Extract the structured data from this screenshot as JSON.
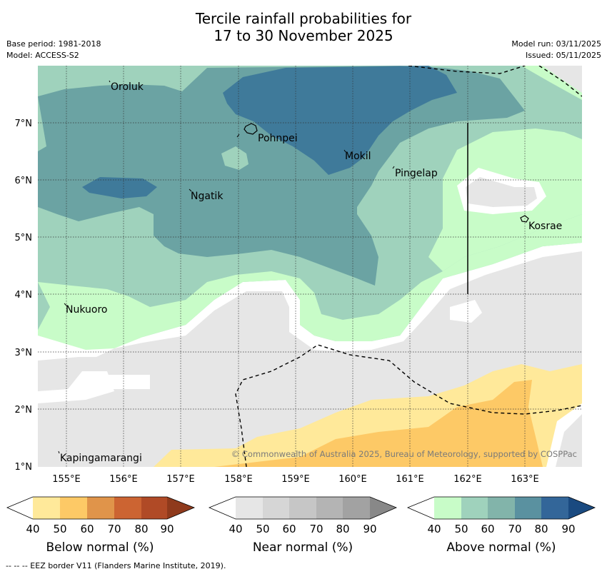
{
  "title": {
    "line1": "Tercile rainfall probabilities for",
    "line2": "17 to 30 November 2025"
  },
  "meta": {
    "base_period": "Base period: 1981-2018",
    "model": "Model: ACCESS-S2",
    "model_run": "Model run: 03/11/2025",
    "issued": "Issued: 05/11/2025"
  },
  "map": {
    "lon_labels": [
      "155°E",
      "156°E",
      "157°E",
      "158°E",
      "159°E",
      "160°E",
      "161°E",
      "162°E",
      "163°E"
    ],
    "lat_labels": [
      "7°N",
      "6°N",
      "5°N",
      "4°N",
      "3°N",
      "2°N",
      "1°N"
    ],
    "places": [
      {
        "name": "Oroluk"
      },
      {
        "name": "Pohnpei"
      },
      {
        "name": "Mokil"
      },
      {
        "name": "Pingelap"
      },
      {
        "name": "Ngatik"
      },
      {
        "name": "Kosrae"
      },
      {
        "name": "Nukuoro"
      },
      {
        "name": "Kapingamarangi"
      }
    ],
    "copyright": "© Commonwealth of Australia 2025, Bureau of Meteorology, supported by COSPPac",
    "colors": {
      "above_50": "#c8fcc8",
      "above_60": "#9fd2bc",
      "above_70": "#6ba3a3",
      "above_80": "#3f7a9a",
      "near_40": "#e6e6e6",
      "below_50": "#ffe99a",
      "below_60": "#fdc966"
    }
  },
  "colorbars": [
    {
      "title": "Below normal (%)",
      "ticks": [
        "40",
        "50",
        "60",
        "70",
        "80",
        "90"
      ],
      "colors": [
        "#ffffff",
        "#ffe99a",
        "#fdc966",
        "#e0944a",
        "#cc6432",
        "#b04a26",
        "#8f3a1c"
      ]
    },
    {
      "title": "Near normal (%)",
      "ticks": [
        "40",
        "50",
        "60",
        "70",
        "80",
        "90"
      ],
      "colors": [
        "#ffffff",
        "#e6e6e6",
        "#d6d6d6",
        "#c6c6c6",
        "#b4b4b4",
        "#a2a2a2",
        "#888888"
      ]
    },
    {
      "title": "Above normal (%)",
      "ticks": [
        "40",
        "50",
        "60",
        "70",
        "80",
        "90"
      ],
      "colors": [
        "#ffffff",
        "#c8fcc8",
        "#9fd2bc",
        "#82b4aa",
        "#5a91a0",
        "#336699",
        "#1a4a80"
      ]
    }
  ],
  "footnote": "--  --  -- EEZ border V11 (Flanders Marine Institute, 2019)."
}
